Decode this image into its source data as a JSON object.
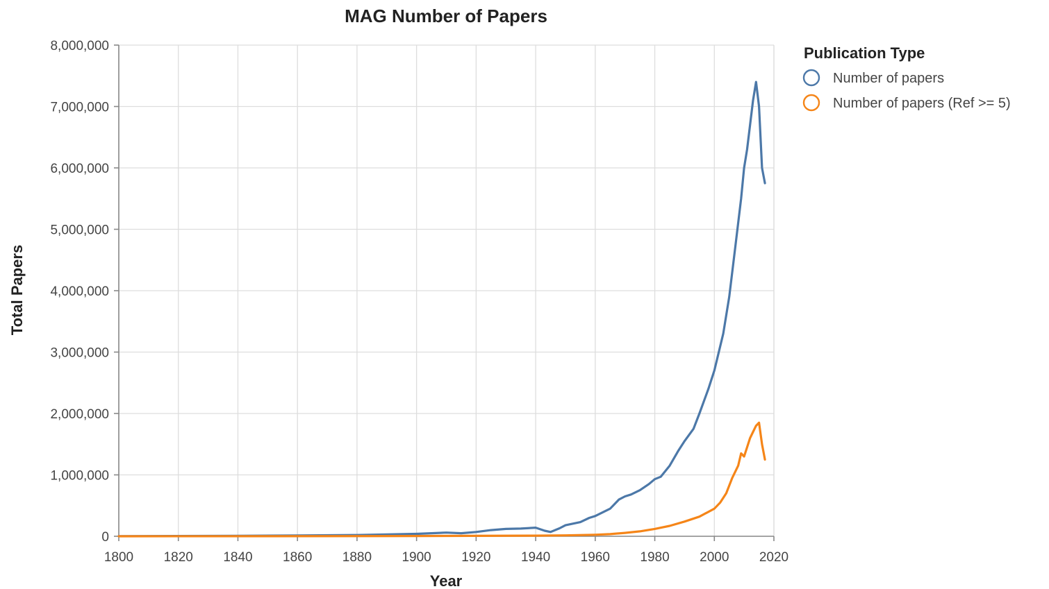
{
  "chart_data": {
    "type": "line",
    "title": "MAG Number of Papers",
    "xlabel": "Year",
    "ylabel": "Total Papers",
    "xlim": [
      1800,
      2020
    ],
    "ylim": [
      0,
      8000000
    ],
    "x_ticks": [
      1800,
      1820,
      1840,
      1860,
      1880,
      1900,
      1920,
      1940,
      1960,
      1980,
      2000,
      2020
    ],
    "x_tick_labels": [
      "1800",
      "1820",
      "1840",
      "1860",
      "1880",
      "1900",
      "1920",
      "1940",
      "1960",
      "1980",
      "2000",
      "2020"
    ],
    "y_ticks": [
      0,
      1000000,
      2000000,
      3000000,
      4000000,
      5000000,
      6000000,
      7000000,
      8000000
    ],
    "y_tick_labels": [
      "0",
      "1,000,000",
      "2,000,000",
      "3,000,000",
      "4,000,000",
      "5,000,000",
      "6,000,000",
      "7,000,000",
      "8,000,000"
    ],
    "grid": true,
    "legend": {
      "title": "Publication Type",
      "placement": "right"
    },
    "series": [
      {
        "name": "Number of papers",
        "color": "#4c78a8",
        "points": [
          [
            1800,
            2000
          ],
          [
            1820,
            4000
          ],
          [
            1840,
            8000
          ],
          [
            1860,
            12000
          ],
          [
            1880,
            20000
          ],
          [
            1900,
            40000
          ],
          [
            1910,
            60000
          ],
          [
            1915,
            50000
          ],
          [
            1920,
            70000
          ],
          [
            1925,
            100000
          ],
          [
            1930,
            120000
          ],
          [
            1935,
            125000
          ],
          [
            1940,
            140000
          ],
          [
            1943,
            90000
          ],
          [
            1945,
            70000
          ],
          [
            1948,
            130000
          ],
          [
            1950,
            180000
          ],
          [
            1955,
            230000
          ],
          [
            1958,
            300000
          ],
          [
            1960,
            330000
          ],
          [
            1965,
            450000
          ],
          [
            1968,
            600000
          ],
          [
            1970,
            650000
          ],
          [
            1972,
            680000
          ],
          [
            1975,
            750000
          ],
          [
            1978,
            850000
          ],
          [
            1980,
            930000
          ],
          [
            1982,
            970000
          ],
          [
            1985,
            1150000
          ],
          [
            1988,
            1400000
          ],
          [
            1990,
            1550000
          ],
          [
            1993,
            1750000
          ],
          [
            1995,
            2000000
          ],
          [
            1998,
            2400000
          ],
          [
            2000,
            2700000
          ],
          [
            2003,
            3300000
          ],
          [
            2005,
            3900000
          ],
          [
            2007,
            4700000
          ],
          [
            2009,
            5500000
          ],
          [
            2010,
            6000000
          ],
          [
            2011,
            6300000
          ],
          [
            2012,
            6700000
          ],
          [
            2013,
            7100000
          ],
          [
            2014,
            7400000
          ],
          [
            2015,
            7000000
          ],
          [
            2016,
            6000000
          ],
          [
            2017,
            5750000
          ]
        ]
      },
      {
        "name": "Number of papers (Ref >= 5)",
        "color": "#f58518",
        "points": [
          [
            1800,
            0
          ],
          [
            1850,
            1000
          ],
          [
            1900,
            4000
          ],
          [
            1940,
            10000
          ],
          [
            1950,
            15000
          ],
          [
            1960,
            25000
          ],
          [
            1965,
            35000
          ],
          [
            1970,
            55000
          ],
          [
            1975,
            80000
          ],
          [
            1980,
            120000
          ],
          [
            1985,
            170000
          ],
          [
            1990,
            240000
          ],
          [
            1995,
            320000
          ],
          [
            2000,
            450000
          ],
          [
            2002,
            550000
          ],
          [
            2004,
            700000
          ],
          [
            2006,
            950000
          ],
          [
            2008,
            1150000
          ],
          [
            2009,
            1350000
          ],
          [
            2010,
            1300000
          ],
          [
            2011,
            1450000
          ],
          [
            2012,
            1600000
          ],
          [
            2013,
            1700000
          ],
          [
            2014,
            1800000
          ],
          [
            2015,
            1850000
          ],
          [
            2016,
            1500000
          ],
          [
            2017,
            1250000
          ]
        ]
      }
    ]
  }
}
